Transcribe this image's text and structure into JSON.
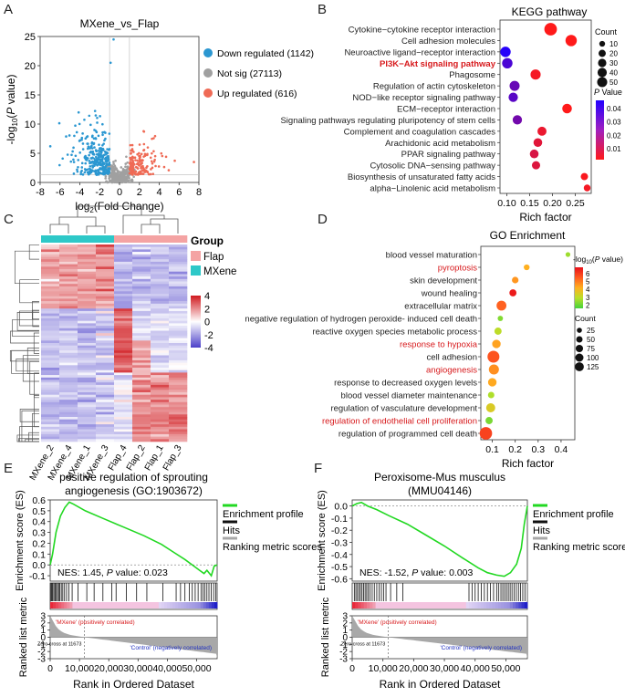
{
  "panels": {
    "a": "A",
    "b": "B",
    "c": "C",
    "d": "D",
    "e": "E",
    "f": "F"
  },
  "chart_data": [
    {
      "id": "volcano",
      "type": "scatter",
      "title": "MXene_vs_Flap",
      "xlabel_parts": [
        "log",
        "2",
        "(Fold Change)"
      ],
      "ylabel_parts": [
        "-log",
        "10",
        "(",
        "P",
        " value)"
      ],
      "xlim": [
        -8,
        8
      ],
      "ylim": [
        0,
        25
      ],
      "xticks": [
        "-8",
        "-6",
        "-4",
        "-2",
        "0",
        "2",
        "4",
        "6",
        "8"
      ],
      "xtick_values": [
        -8,
        -6,
        -4,
        -2,
        0,
        2,
        4,
        6,
        8
      ],
      "yticks": [
        "0",
        "5",
        "10",
        "15",
        "20",
        "25"
      ],
      "ytick_values": [
        0,
        5,
        10,
        15,
        20,
        25
      ],
      "legend": [
        {
          "label": "Down regulated (1142)",
          "color": "#2b97d1"
        },
        {
          "label": "Not sig (27113)",
          "color": "#a0a0a0"
        },
        {
          "label": "Up regulated (616)",
          "color": "#ef6a55"
        }
      ],
      "thresholds": {
        "fc": 1,
        "p_line": 1.3
      }
    },
    {
      "id": "kegg",
      "type": "scatter",
      "title": "KEGG pathway",
      "xlabel": "Rich factor",
      "xlim": [
        0.085,
        0.285
      ],
      "xticks": [
        "0.10",
        "0.15",
        "0.20",
        "0.25"
      ],
      "xtick_values": [
        0.1,
        0.15,
        0.2,
        0.25
      ],
      "highlight_color": "#d7191c",
      "terms": [
        {
          "name": "Cytokine−cytokine receptor interaction",
          "rich": 0.196,
          "count": 50,
          "p": 0.0005,
          "highlight": false
        },
        {
          "name": "Cell adhesion molecules",
          "rich": 0.241,
          "count": 38,
          "p": 0.0005,
          "highlight": false
        },
        {
          "name": "Neuroactive ligand−receptor interaction",
          "rich": 0.097,
          "count": 30,
          "p": 0.045,
          "highlight": false
        },
        {
          "name": "PI3K−Akt signaling pathway",
          "rich": 0.101,
          "count": 30,
          "p": 0.038,
          "highlight": true
        },
        {
          "name": "Phagosome",
          "rich": 0.163,
          "count": 28,
          "p": 0.004,
          "highlight": false
        },
        {
          "name": "Regulation of actin cytoskeleton",
          "rich": 0.117,
          "count": 27,
          "p": 0.032,
          "highlight": false
        },
        {
          "name": "NOD−like receptor signaling pathway",
          "rich": 0.114,
          "count": 22,
          "p": 0.035,
          "highlight": false
        },
        {
          "name": "ECM−receptor interaction",
          "rich": 0.232,
          "count": 24,
          "p": 0.001,
          "highlight": false
        },
        {
          "name": "Signaling pathways regulating pluripotency of stem cells",
          "rich": 0.123,
          "count": 22,
          "p": 0.03,
          "highlight": false
        },
        {
          "name": "Complement and coagulation cascades",
          "rich": 0.177,
          "count": 20,
          "p": 0.006,
          "highlight": false
        },
        {
          "name": "Arachidonic acid metabolism",
          "rich": 0.168,
          "count": 18,
          "p": 0.008,
          "highlight": false
        },
        {
          "name": "PPAR signaling pathway",
          "rich": 0.16,
          "count": 18,
          "p": 0.01,
          "highlight": false
        },
        {
          "name": "Cytosolic DNA−sensing pathway",
          "rich": 0.164,
          "count": 15,
          "p": 0.009,
          "highlight": false
        },
        {
          "name": "Biosynthesis of unsaturated fatty acids",
          "rich": 0.27,
          "count": 10,
          "p": 0.003,
          "highlight": false
        },
        {
          "name": "alpha−Linolenic acid metabolism",
          "rich": 0.276,
          "count": 8,
          "p": 0.004,
          "highlight": false
        }
      ],
      "size_legend": {
        "title": "Count",
        "values": [
          10,
          20,
          30,
          40,
          50
        ]
      },
      "color_legend": {
        "title_parts": [
          "P",
          " Value"
        ],
        "ticks": [
          "0.04",
          "0.03",
          "0.02",
          "0.01"
        ],
        "tick_values": [
          0.04,
          0.03,
          0.02,
          0.01
        ],
        "range": [
          0.002,
          0.046
        ],
        "low_color": "#ff1a1a",
        "high_color": "#2200ff"
      }
    },
    {
      "id": "heatmap",
      "type": "heatmap",
      "columns": [
        "MXene_2",
        "MXene_4",
        "MXene_1",
        "MXene_3",
        "Flap_4",
        "Flap_2",
        "Flap_1",
        "Flap_3"
      ],
      "group_legend": {
        "title": "Group",
        "items": [
          {
            "label": "Flap",
            "color": "#f4a3a3"
          },
          {
            "label": "MXene",
            "color": "#2ec8c8"
          }
        ]
      },
      "scale": {
        "ticks": [
          "4",
          "2",
          "0",
          "-2",
          "-4"
        ],
        "tick_values": [
          4,
          2,
          0,
          -2,
          -4
        ],
        "low_color": "#4b3fc9",
        "mid_color": "#ffffff",
        "high_color": "#d0191e"
      },
      "column_groups": [
        "MXene",
        "MXene",
        "MXene",
        "MXene",
        "Flap",
        "Flap",
        "Flap",
        "Flap"
      ]
    },
    {
      "id": "go",
      "type": "scatter",
      "title": "GO Enrichment",
      "xlabel": "Rich factor",
      "xlim": [
        0.05,
        0.46
      ],
      "xticks": [
        "0.1",
        "0.2",
        "0.3",
        "0.4"
      ],
      "xtick_values": [
        0.1,
        0.2,
        0.3,
        0.4
      ],
      "highlight_color": "#d7191c",
      "terms": [
        {
          "name": "blood vessel maturation",
          "rich": 0.43,
          "count": 6,
          "logp": 2.6,
          "highlight": false
        },
        {
          "name": "pyroptosis",
          "rich": 0.25,
          "count": 14,
          "logp": 4.2,
          "highlight": true
        },
        {
          "name": "skin development",
          "rich": 0.2,
          "count": 22,
          "logp": 4.6,
          "highlight": false
        },
        {
          "name": "wound healing",
          "rich": 0.19,
          "count": 28,
          "logp": 6.6,
          "highlight": false
        },
        {
          "name": "extracellular matrix",
          "rich": 0.14,
          "count": 75,
          "logp": 5.4,
          "highlight": false
        },
        {
          "name": "negative regulation of hydrogen peroxide- induced cell death",
          "rich": 0.135,
          "count": 10,
          "logp": 2.3,
          "highlight": false
        },
        {
          "name": "reactive oxygen species metabolic process",
          "rich": 0.125,
          "count": 30,
          "logp": 3.0,
          "highlight": false
        },
        {
          "name": "response to hypoxia",
          "rich": 0.118,
          "count": 50,
          "logp": 4.4,
          "highlight": true
        },
        {
          "name": "cell adhesion",
          "rich": 0.105,
          "count": 125,
          "logp": 5.6,
          "highlight": false
        },
        {
          "name": "angiogenesis",
          "rich": 0.107,
          "count": 80,
          "logp": 4.7,
          "highlight": true
        },
        {
          "name": "response to decreased oxygen levels",
          "rich": 0.1,
          "count": 50,
          "logp": 4.3,
          "highlight": false
        },
        {
          "name": "blood vessel diameter maintenance",
          "rich": 0.095,
          "count": 20,
          "logp": 2.8,
          "highlight": false
        },
        {
          "name": "regulation of vasculature development",
          "rich": 0.093,
          "count": 60,
          "logp": 3.5,
          "highlight": false
        },
        {
          "name": "regulation of endothelial cell proliferation",
          "rich": 0.086,
          "count": 30,
          "logp": 2.2,
          "highlight": true
        },
        {
          "name": "regulation of programmed cell death",
          "rich": 0.072,
          "count": 140,
          "logp": 5.9,
          "highlight": false
        }
      ],
      "color_legend": {
        "title_parts": [
          "-log",
          "10",
          "(",
          "P",
          " value)"
        ],
        "ticks": [
          "6",
          "5",
          "4",
          "3",
          "2"
        ],
        "tick_values": [
          6,
          5,
          4,
          3,
          2
        ],
        "range": [
          1.6,
          6.8
        ]
      },
      "size_legend": {
        "title": "Count",
        "values": [
          25,
          50,
          75,
          100,
          125
        ]
      }
    },
    {
      "id": "gsea_e",
      "type": "line",
      "title": [
        "positive regulation of sprouting",
        "angiogenesis (GO:1903672)"
      ],
      "ylabel": "Enrichment score (ES)",
      "ylabel2": "Ranked list metric",
      "xlabel": "Rank in Ordered Dataset",
      "ylim": [
        -0.15,
        0.6
      ],
      "yticks": [
        "0.6",
        "0.5",
        "0.4",
        "0.3",
        "0.2",
        "0.1",
        "0.0",
        "-0.1"
      ],
      "ytick_values": [
        0.6,
        0.5,
        0.4,
        0.3,
        0.2,
        0.1,
        0.0,
        -0.1
      ],
      "xlim": [
        0,
        57000
      ],
      "xticks": [
        "0",
        "10,000",
        "20,000",
        "30,000",
        "40,000",
        "50,000"
      ],
      "xtick_values": [
        0,
        10000,
        20000,
        30000,
        40000,
        50000
      ],
      "metric_ticks": [
        "3",
        "2",
        "1",
        "0",
        "-1",
        "-2",
        "-3"
      ],
      "metric_tick_values": [
        3,
        2,
        1,
        0,
        -1,
        -2,
        -3
      ],
      "es_curve": [
        [
          0,
          0
        ],
        [
          800,
          0.1
        ],
        [
          2000,
          0.3
        ],
        [
          3500,
          0.45
        ],
        [
          5000,
          0.53
        ],
        [
          6500,
          0.58
        ],
        [
          8000,
          0.56
        ],
        [
          12000,
          0.5
        ],
        [
          18000,
          0.43
        ],
        [
          25000,
          0.35
        ],
        [
          32000,
          0.27
        ],
        [
          38000,
          0.19
        ],
        [
          42000,
          0.12
        ],
        [
          46000,
          0.05
        ],
        [
          49000,
          -0.01
        ],
        [
          51000,
          -0.05
        ],
        [
          52500,
          -0.08
        ],
        [
          53500,
          -0.05
        ],
        [
          55000,
          -0.1
        ],
        [
          56000,
          -0.01
        ],
        [
          57000,
          0
        ]
      ],
      "hits": [
        300,
        600,
        900,
        1300,
        1700,
        2100,
        2500,
        2900,
        3300,
        3800,
        4300,
        4900,
        5600,
        6400,
        7500,
        9500,
        12500,
        15000,
        18000,
        21000,
        22500,
        26000,
        29500,
        33000,
        38500,
        43000,
        44500,
        46000,
        47500,
        48500,
        49500,
        50500,
        51500,
        52200,
        52800,
        53500,
        54200,
        55000,
        55800,
        56500
      ],
      "nes_text": {
        "prefix": "NES: 1.45, ",
        "p": "P",
        "suffix": " value: 0.023"
      },
      "zero_cross": "Zero cross at 11673",
      "zero_cross_value": 11673,
      "pos_label": "'MXene' (positively correlated)",
      "neg_label": "'Control' (negatively correlated)"
    },
    {
      "id": "gsea_f",
      "type": "line",
      "title": [
        "Peroxisome-Mus musculus",
        "(MMU04146)"
      ],
      "ylabel": "Enrichment score (ES)",
      "ylabel2": "Ranked list metric",
      "xlabel": "Rank in Ordered Dataset",
      "ylim": [
        -0.62,
        0.05
      ],
      "yticks": [
        "0.0",
        "-0.1",
        "-0.2",
        "-0.3",
        "-0.4",
        "-0.5",
        "-0.6"
      ],
      "ytick_values": [
        0.0,
        -0.1,
        -0.2,
        -0.3,
        -0.4,
        -0.5,
        -0.6
      ],
      "xlim": [
        0,
        57000
      ],
      "xticks": [
        "0",
        "10,000",
        "20,000",
        "30,000",
        "40,000",
        "50,000"
      ],
      "xtick_values": [
        0,
        10000,
        20000,
        30000,
        40000,
        50000
      ],
      "metric_ticks": [
        "3",
        "2",
        "1",
        "0",
        "-1",
        "-2",
        "-3"
      ],
      "metric_tick_values": [
        3,
        2,
        1,
        0,
        -1,
        -2,
        -3
      ],
      "es_curve": [
        [
          0,
          0
        ],
        [
          1500,
          0.02
        ],
        [
          3000,
          0.03
        ],
        [
          5000,
          0.0
        ],
        [
          8000,
          -0.03
        ],
        [
          12000,
          -0.08
        ],
        [
          18000,
          -0.15
        ],
        [
          24000,
          -0.24
        ],
        [
          30000,
          -0.33
        ],
        [
          36000,
          -0.43
        ],
        [
          41000,
          -0.51
        ],
        [
          44000,
          -0.55
        ],
        [
          47000,
          -0.57
        ],
        [
          49500,
          -0.58
        ],
        [
          51500,
          -0.55
        ],
        [
          53500,
          -0.48
        ],
        [
          55000,
          -0.35
        ],
        [
          56000,
          -0.15
        ],
        [
          57000,
          0.0
        ]
      ],
      "hits": [
        700,
        1200,
        1700,
        2200,
        2700,
        3200,
        3700,
        4200,
        4700,
        5200,
        5800,
        6500,
        7200,
        8000,
        8800,
        9500,
        10200,
        11000,
        12500,
        14500,
        16500,
        38000,
        39000,
        40000,
        41000,
        42000,
        43000,
        44000,
        45000,
        46000,
        47000,
        47700,
        48400,
        49000,
        49600,
        50200,
        50800,
        51400,
        52000,
        52700,
        53400,
        54100,
        54800,
        55500,
        56200
      ],
      "nes_text": {
        "prefix": "NES: -1.52, ",
        "p": "P",
        "suffix": " value: 0.003"
      },
      "zero_cross": "Zero cross at 11673",
      "zero_cross_value": 11673,
      "pos_label": "'MXene' (positively correlated)",
      "neg_label": "'Control' (negatively correlated)"
    }
  ],
  "gsea_legend": {
    "items": [
      {
        "label": "Enrichment profile",
        "color": "#22d822"
      },
      {
        "label": "Hits",
        "color": "#111111"
      },
      {
        "label": "Ranking metric scores",
        "color": "#a8a8a8"
      }
    ]
  }
}
